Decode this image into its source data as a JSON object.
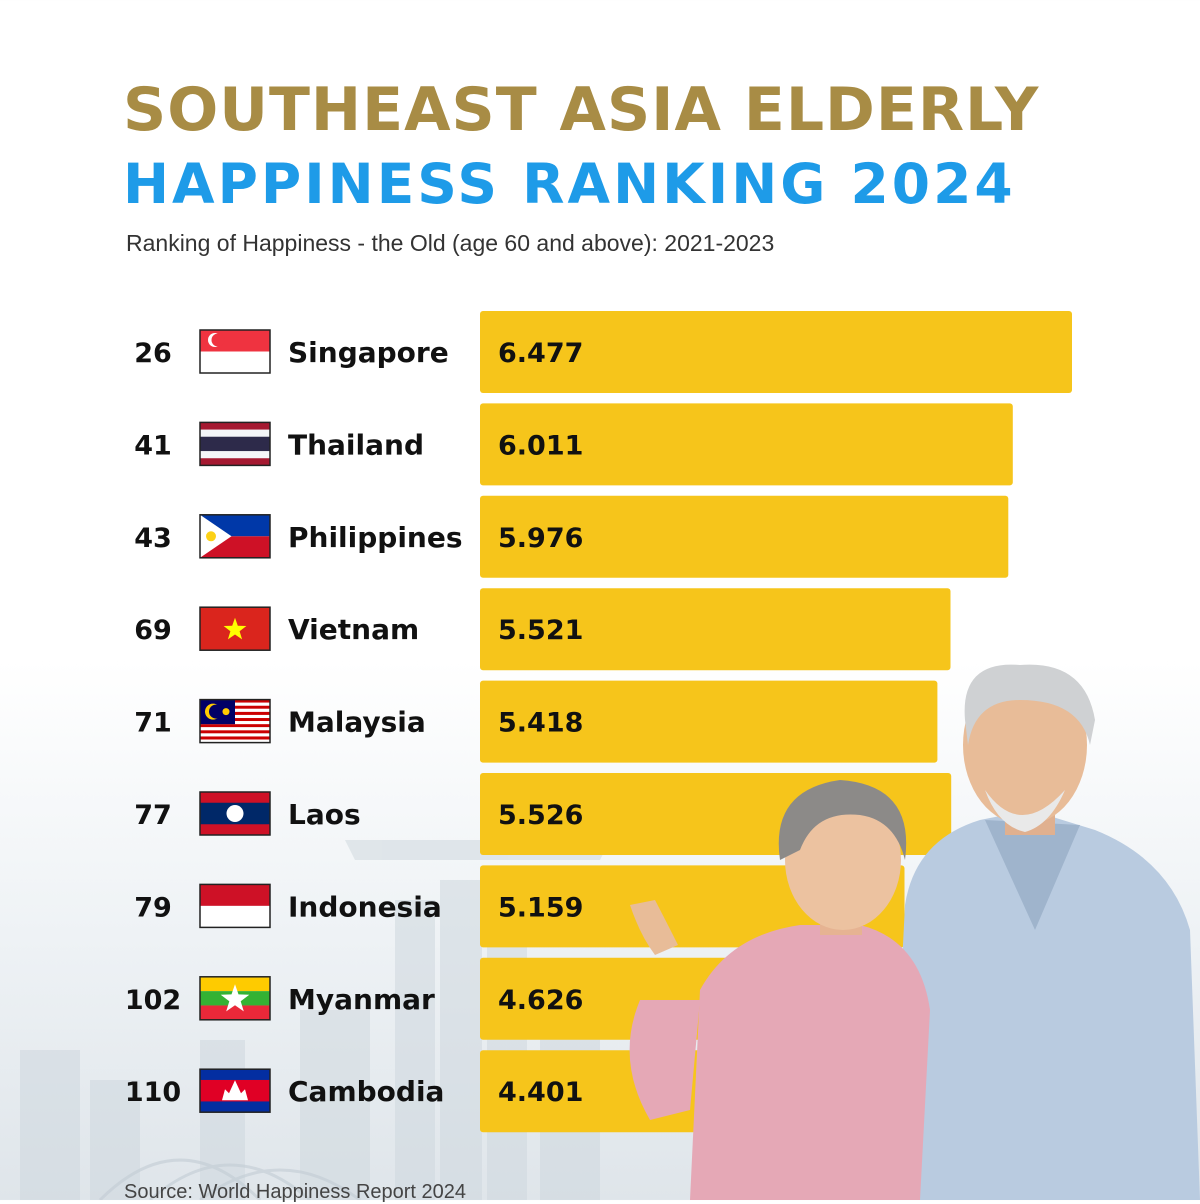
{
  "header": {
    "title_line1": "SOUTHEAST ASIA ELDERLY",
    "title_line2": "HAPPINESS RANKING 2024",
    "subtitle": "Ranking of Happiness - the Old (age 60 and above): 2021-2023"
  },
  "footer": {
    "source": "Source: World Happiness Report 2024"
  },
  "colors": {
    "bar": "#f6c51b",
    "title_gold": "#a88c45",
    "title_blue": "#1e9be8"
  },
  "chart_data": {
    "type": "bar",
    "orientation": "horizontal",
    "title": "SOUTHEAST ASIA ELDERLY HAPPINESS RANKING 2024",
    "subtitle": "Ranking of Happiness - the Old (age 60 and above): 2021-2023",
    "categories": [
      "Singapore",
      "Thailand",
      "Philippines",
      "Vietnam",
      "Malaysia",
      "Laos",
      "Indonesia",
      "Myanmar",
      "Cambodia"
    ],
    "ranks": [
      "26",
      "41",
      "43",
      "69",
      "71",
      "77",
      "79",
      "102",
      "110"
    ],
    "flags": [
      "singapore-flag-icon",
      "thailand-flag-icon",
      "philippines-flag-icon",
      "vietnam-flag-icon",
      "malaysia-flag-icon",
      "laos-flag-icon",
      "indonesia-flag-icon",
      "myanmar-flag-icon",
      "cambodia-flag-icon"
    ],
    "values": [
      6.477,
      6.011,
      5.976,
      5.521,
      5.418,
      5.526,
      5.159,
      4.626,
      4.401
    ],
    "value_labels": [
      "6.477",
      "6.011",
      "5.976",
      "5.521",
      "5.418",
      "5.526",
      "5.159",
      "4.626",
      "4.401"
    ],
    "grid": false,
    "legend": "none"
  }
}
